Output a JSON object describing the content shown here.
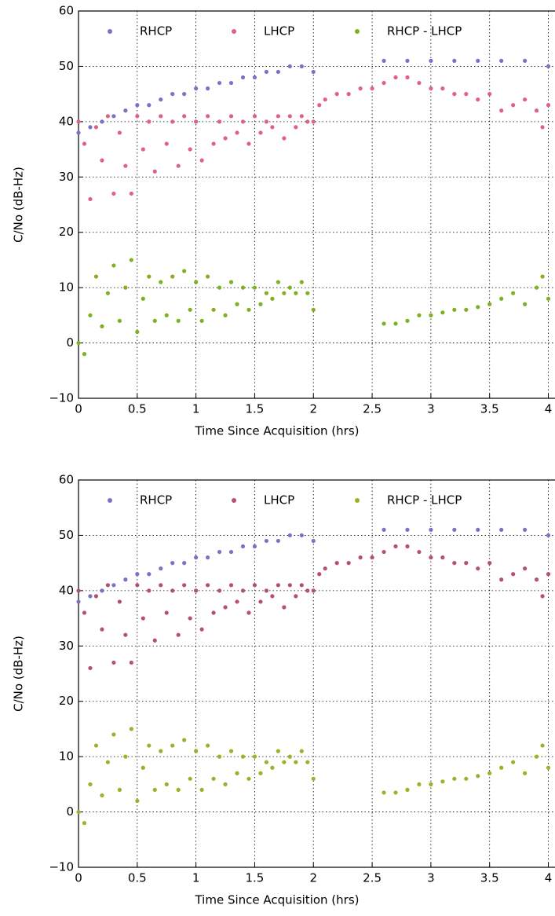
{
  "chart_data": [
    {
      "type": "scatter",
      "xlabel": "Time Since Acquisition (hrs)",
      "ylabel": "C/No (dB-Hz)",
      "xlim": [
        0,
        4.05
      ],
      "ylim": [
        -10,
        60
      ],
      "xticks": [
        0,
        0.5,
        1,
        1.5,
        2,
        2.5,
        3,
        3.5,
        4
      ],
      "yticks": [
        {
          "value": -10,
          "label": "−10"
        },
        0,
        10,
        20,
        30,
        40,
        50,
        60
      ],
      "grid": true,
      "series": [
        {
          "name": "RHCP",
          "color": "#7b72c6",
          "x": [
            0,
            0.1,
            0.2,
            0.3,
            0.4,
            0.5,
            0.6,
            0.7,
            0.8,
            0.9,
            1.0,
            1.1,
            1.2,
            1.3,
            1.4,
            1.5,
            1.6,
            1.7,
            1.8,
            1.9,
            2.0,
            2.6,
            2.8,
            3.0,
            3.2,
            3.4,
            3.6,
            3.8,
            4.0
          ],
          "values": [
            38,
            39,
            40,
            41,
            42,
            43,
            43,
            44,
            45,
            45,
            46,
            46,
            47,
            47,
            48,
            48,
            49,
            49,
            50,
            50,
            49,
            51,
            51,
            51,
            51,
            51,
            51,
            51,
            50
          ]
        },
        {
          "name": "LHCP",
          "color": "#e0627f",
          "x": [
            0,
            0.05,
            0.1,
            0.15,
            0.2,
            0.25,
            0.3,
            0.35,
            0.4,
            0.45,
            0.5,
            0.55,
            0.6,
            0.65,
            0.7,
            0.75,
            0.8,
            0.85,
            0.9,
            0.95,
            1.0,
            1.05,
            1.1,
            1.15,
            1.2,
            1.25,
            1.3,
            1.35,
            1.4,
            1.45,
            1.5,
            1.55,
            1.6,
            1.65,
            1.7,
            1.75,
            1.8,
            1.85,
            1.9,
            1.95,
            2.0,
            2.05,
            2.1,
            2.2,
            2.3,
            2.4,
            2.5,
            2.6,
            2.7,
            2.8,
            2.9,
            3.0,
            3.1,
            3.2,
            3.3,
            3.4,
            3.5,
            3.6,
            3.7,
            3.8,
            3.9,
            3.95,
            4.0
          ],
          "values": [
            40,
            36,
            26,
            39,
            33,
            41,
            27,
            38,
            32,
            27,
            41,
            35,
            40,
            31,
            41,
            36,
            40,
            32,
            41,
            35,
            40,
            33,
            41,
            36,
            40,
            37,
            41,
            38,
            40,
            36,
            41,
            38,
            40,
            39,
            41,
            37,
            41,
            39,
            41,
            40,
            40,
            43,
            44,
            45,
            45,
            46,
            46,
            47,
            48,
            48,
            47,
            46,
            46,
            45,
            45,
            44,
            45,
            42,
            43,
            44,
            42,
            39,
            43
          ]
        },
        {
          "name": "RHCP - LHCP",
          "color": "#7fb022",
          "x": [
            0,
            0.05,
            0.1,
            0.15,
            0.2,
            0.25,
            0.3,
            0.35,
            0.4,
            0.45,
            0.5,
            0.55,
            0.6,
            0.65,
            0.7,
            0.75,
            0.8,
            0.85,
            0.9,
            0.95,
            1.0,
            1.05,
            1.1,
            1.15,
            1.2,
            1.25,
            1.3,
            1.35,
            1.4,
            1.45,
            1.5,
            1.55,
            1.6,
            1.65,
            1.7,
            1.75,
            1.8,
            1.85,
            1.9,
            1.95,
            2.0,
            2.6,
            2.7,
            2.8,
            2.9,
            3.0,
            3.1,
            3.2,
            3.3,
            3.4,
            3.5,
            3.6,
            3.7,
            3.8,
            3.9,
            3.95,
            4.0
          ],
          "values": [
            0,
            -2,
            5,
            12,
            3,
            9,
            14,
            4,
            10,
            15,
            2,
            8,
            12,
            4,
            11,
            5,
            12,
            4,
            13,
            6,
            11,
            4,
            12,
            6,
            10,
            5,
            11,
            7,
            10,
            6,
            10,
            7,
            9,
            8,
            11,
            9,
            10,
            9,
            11,
            9,
            6,
            3.5,
            3.5,
            4,
            5,
            5,
            5.5,
            6,
            6,
            6.5,
            7,
            8,
            9,
            7,
            10,
            12,
            8
          ]
        }
      ]
    },
    {
      "type": "scatter",
      "xlabel": "Time Since Acquisition (hrs)",
      "ylabel": "C/No (dB-Hz)",
      "xlim": [
        0,
        4.05
      ],
      "ylim": [
        -10,
        60
      ],
      "xticks": [
        0,
        0.5,
        1,
        1.5,
        2,
        2.5,
        3,
        3.5,
        4
      ],
      "yticks": [
        {
          "value": -10,
          "label": "−10"
        },
        0,
        10,
        20,
        30,
        40,
        50,
        60
      ],
      "grid": true,
      "series": [
        {
          "name": "RHCP",
          "color": "#7b72c6",
          "x": [
            0,
            0.1,
            0.2,
            0.3,
            0.4,
            0.5,
            0.6,
            0.7,
            0.8,
            0.9,
            1.0,
            1.1,
            1.2,
            1.3,
            1.4,
            1.5,
            1.6,
            1.7,
            1.8,
            1.9,
            2.0,
            2.6,
            2.8,
            3.0,
            3.2,
            3.4,
            3.6,
            3.8,
            4.0
          ],
          "values": [
            38,
            39,
            40,
            41,
            42,
            43,
            43,
            44,
            45,
            45,
            46,
            46,
            47,
            47,
            48,
            48,
            49,
            49,
            50,
            50,
            49,
            51,
            51,
            51,
            51,
            51,
            51,
            51,
            50
          ]
        },
        {
          "name": "LHCP",
          "color": "#b4516c",
          "x": [
            0,
            0.05,
            0.1,
            0.15,
            0.2,
            0.25,
            0.3,
            0.35,
            0.4,
            0.45,
            0.5,
            0.55,
            0.6,
            0.65,
            0.7,
            0.75,
            0.8,
            0.85,
            0.9,
            0.95,
            1.0,
            1.05,
            1.1,
            1.15,
            1.2,
            1.25,
            1.3,
            1.35,
            1.4,
            1.45,
            1.5,
            1.55,
            1.6,
            1.65,
            1.7,
            1.75,
            1.8,
            1.85,
            1.9,
            1.95,
            2.0,
            2.05,
            2.1,
            2.2,
            2.3,
            2.4,
            2.5,
            2.6,
            2.7,
            2.8,
            2.9,
            3.0,
            3.1,
            3.2,
            3.3,
            3.4,
            3.5,
            3.6,
            3.7,
            3.8,
            3.9,
            3.95,
            4.0
          ],
          "values": [
            40,
            36,
            26,
            39,
            33,
            41,
            27,
            38,
            32,
            27,
            41,
            35,
            40,
            31,
            41,
            36,
            40,
            32,
            41,
            35,
            40,
            33,
            41,
            36,
            40,
            37,
            41,
            38,
            40,
            36,
            41,
            38,
            40,
            39,
            41,
            37,
            41,
            39,
            41,
            40,
            40,
            43,
            44,
            45,
            45,
            46,
            46,
            47,
            48,
            48,
            47,
            46,
            46,
            45,
            45,
            44,
            45,
            42,
            43,
            44,
            42,
            39,
            43
          ]
        },
        {
          "name": "RHCP - LHCP",
          "color": "#9bb128",
          "x": [
            0,
            0.05,
            0.1,
            0.15,
            0.2,
            0.25,
            0.3,
            0.35,
            0.4,
            0.45,
            0.5,
            0.55,
            0.6,
            0.65,
            0.7,
            0.75,
            0.8,
            0.85,
            0.9,
            0.95,
            1.0,
            1.05,
            1.1,
            1.15,
            1.2,
            1.25,
            1.3,
            1.35,
            1.4,
            1.45,
            1.5,
            1.55,
            1.6,
            1.65,
            1.7,
            1.75,
            1.8,
            1.85,
            1.9,
            1.95,
            2.0,
            2.6,
            2.7,
            2.8,
            2.9,
            3.0,
            3.1,
            3.2,
            3.3,
            3.4,
            3.5,
            3.6,
            3.7,
            3.8,
            3.9,
            3.95,
            4.0
          ],
          "values": [
            0,
            -2,
            5,
            12,
            3,
            9,
            14,
            4,
            10,
            15,
            2,
            8,
            12,
            4,
            11,
            5,
            12,
            4,
            13,
            6,
            11,
            4,
            12,
            6,
            10,
            5,
            11,
            7,
            10,
            6,
            10,
            7,
            9,
            8,
            11,
            9,
            10,
            9,
            11,
            9,
            6,
            3.5,
            3.5,
            4,
            5,
            5,
            5.5,
            6,
            6,
            6.5,
            7,
            8,
            9,
            7,
            10,
            12,
            8
          ]
        }
      ]
    }
  ]
}
